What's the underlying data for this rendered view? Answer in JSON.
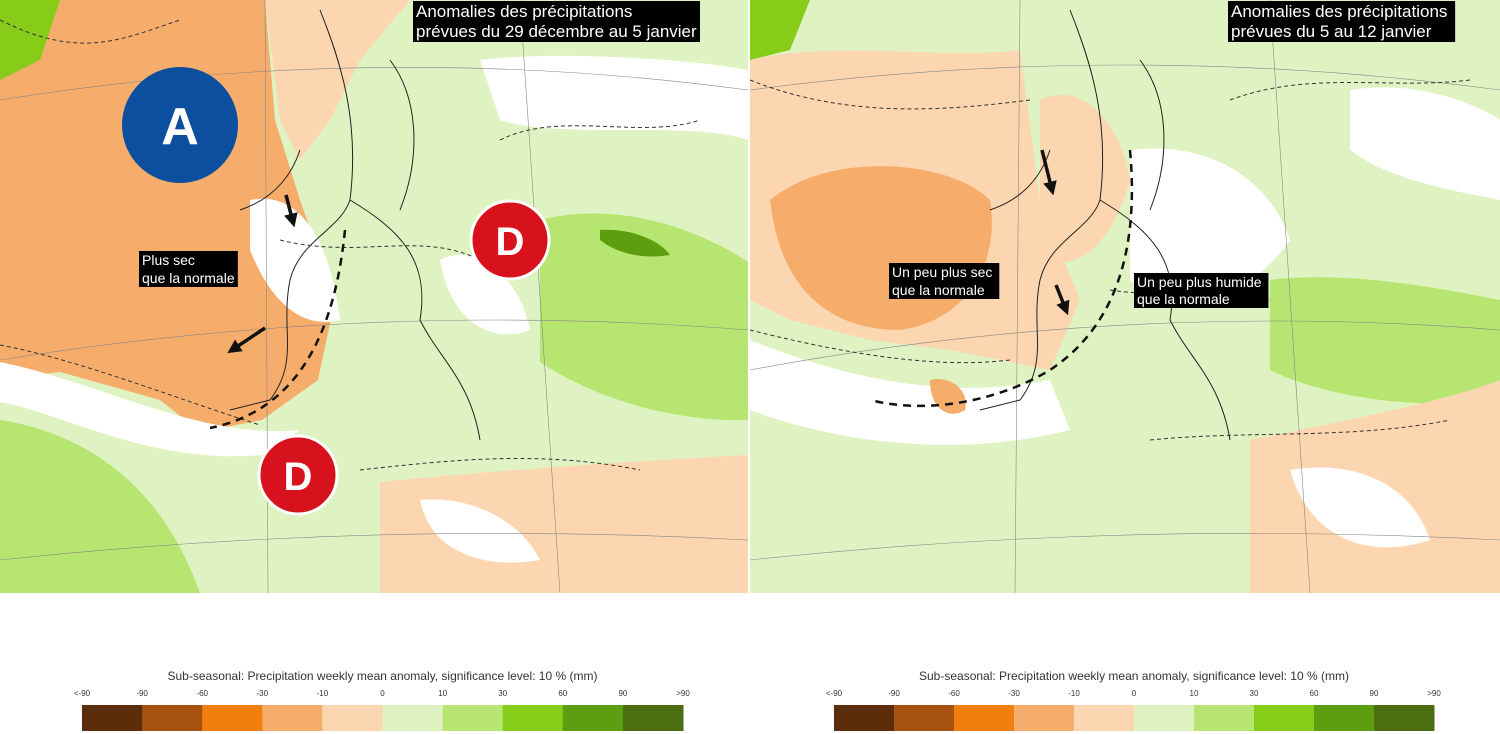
{
  "maps": [
    {
      "title": [
        "Anomalies des précipitations",
        "prévues du 29 décembre au 5 janvier"
      ],
      "pressure_labels": [
        "A",
        "D",
        "D"
      ],
      "annotations": [
        [
          "Plus sec",
          "que la normale"
        ]
      ]
    },
    {
      "title": [
        "Anomalies des précipitations",
        "prévues du 5 au 12 janvier"
      ],
      "annotations": [
        [
          "Un peu plus sec",
          "que la normale"
        ],
        [
          "Un peu plus humide",
          "que la normale"
        ]
      ]
    }
  ],
  "legends": [
    {
      "title": "Sub-seasonal: Precipitation weekly mean anomaly, significance level: 10 % (mm)",
      "labels": [
        "<-90",
        "-90",
        "-60",
        "-30",
        "-10",
        "0",
        "10",
        "30",
        "60",
        "90",
        ">90"
      ],
      "colors": [
        "#5c2d0a",
        "#a8520f",
        "#f07f0f",
        "#f6ad6c",
        "#fcd6b0",
        "#dff3c2",
        "#b7e571",
        "#86cc18",
        "#5c9e10",
        "#4a6e10"
      ]
    },
    {
      "title": "Sub-seasonal: Precipitation weekly mean anomaly, significance level: 10 % (mm)",
      "labels": [
        "<-90",
        "-90",
        "-60",
        "-30",
        "-10",
        "0",
        "10",
        "30",
        "60",
        "90",
        ">90"
      ],
      "colors": [
        "#5c2d0a",
        "#a8520f",
        "#f07f0f",
        "#f6ad6c",
        "#fcd6b0",
        "#dff3c2",
        "#b7e571",
        "#86cc18",
        "#5c9e10",
        "#4a6e10"
      ]
    }
  ]
}
